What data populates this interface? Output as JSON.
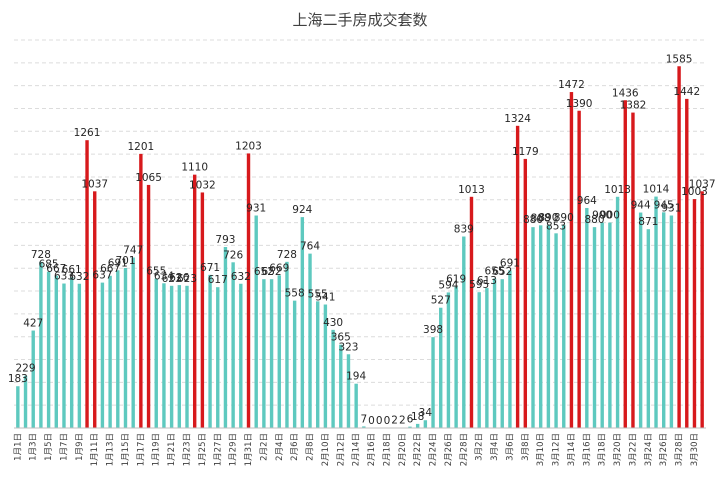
{
  "chart_data": {
    "type": "bar",
    "title": "上海二手房成交套数",
    "xlabel": "",
    "ylabel": "",
    "ylim": [
      0,
      1700
    ],
    "grid": true,
    "legend": "none",
    "colors": {
      "normal": "#5ec9bf",
      "highlight": "#d7191c"
    },
    "x_tick_labels": [
      "1月1日",
      "1月3日",
      "1月5日",
      "1月7日",
      "1月9日",
      "1月11日",
      "1月13日",
      "1月15日",
      "1月17日",
      "1月19日",
      "1月21日",
      "1月23日",
      "1月25日",
      "1月27日",
      "1月29日",
      "1月31日",
      "2月2日",
      "2月4日",
      "2月6日",
      "2月8日",
      "2月10日",
      "2月12日",
      "2月14日",
      "2月16日",
      "2月18日",
      "2月20日",
      "2月22日",
      "2月24日",
      "2月26日",
      "2月28日",
      "3月2日",
      "3月4日",
      "3月6日",
      "3月8日",
      "3月10日",
      "3月12日",
      "3月14日",
      "3月16日",
      "3月18日",
      "3月20日",
      "3月22日",
      "3月24日",
      "3月26日",
      "3月28日",
      "3月30日"
    ],
    "values": [
      183,
      229,
      427,
      728,
      685,
      667,
      633,
      661,
      632,
      1261,
      1037,
      637,
      667,
      691,
      701,
      747,
      1201,
      1065,
      655,
      634,
      623,
      626,
      623,
      1110,
      1032,
      671,
      617,
      793,
      726,
      632,
      1203,
      931,
      652,
      652,
      669,
      728,
      558,
      924,
      764,
      555,
      541,
      430,
      365,
      323,
      194,
      7,
      0,
      0,
      0,
      2,
      2,
      6,
      18,
      34,
      398,
      527,
      594,
      619,
      839,
      1013,
      595,
      613,
      655,
      652,
      691,
      1324,
      1179,
      880,
      888,
      890,
      853,
      890,
      1472,
      1390,
      964,
      880,
      900,
      900,
      1013,
      1436,
      1382,
      944,
      871,
      1014,
      945,
      931,
      1585,
      1442,
      1003,
      1037
    ],
    "highlight_indices": [
      9,
      10,
      16,
      17,
      23,
      24,
      30,
      59,
      65,
      66,
      72,
      73,
      79,
      80,
      86,
      87,
      88,
      89
    ],
    "data_labels": [
      {
        "i": 0,
        "text": "183"
      },
      {
        "i": 1,
        "text": "229"
      },
      {
        "i": 2,
        "text": "427"
      },
      {
        "i": 3,
        "text": "728"
      },
      {
        "i": 4,
        "text": "685"
      },
      {
        "i": 5,
        "text": "667"
      },
      {
        "i": 6,
        "text": "633"
      },
      {
        "i": 7,
        "text": "661"
      },
      {
        "i": 8,
        "text": "632"
      },
      {
        "i": 9,
        "text": "1261"
      },
      {
        "i": 10,
        "text": "1037"
      },
      {
        "i": 11,
        "text": "637"
      },
      {
        "i": 12,
        "text": "667"
      },
      {
        "i": 13,
        "text": "691"
      },
      {
        "i": 14,
        "text": "701"
      },
      {
        "i": 15,
        "text": "747"
      },
      {
        "i": 16,
        "text": "1201"
      },
      {
        "i": 17,
        "text": "1065"
      },
      {
        "i": 18,
        "text": "655"
      },
      {
        "i": 19,
        "text": "634"
      },
      {
        "i": 20,
        "text": "623"
      },
      {
        "i": 21,
        "text": "626"
      },
      {
        "i": 22,
        "text": "623"
      },
      {
        "i": 23,
        "text": "1110"
      },
      {
        "i": 24,
        "text": "1032"
      },
      {
        "i": 25,
        "text": "671"
      },
      {
        "i": 26,
        "text": "617"
      },
      {
        "i": 27,
        "text": "793"
      },
      {
        "i": 28,
        "text": "726"
      },
      {
        "i": 29,
        "text": "632"
      },
      {
        "i": 30,
        "text": "1203"
      },
      {
        "i": 31,
        "text": "931"
      },
      {
        "i": 32,
        "text": "652"
      },
      {
        "i": 33,
        "text": "652"
      },
      {
        "i": 34,
        "text": "669"
      },
      {
        "i": 35,
        "text": "728"
      },
      {
        "i": 36,
        "text": "558"
      },
      {
        "i": 37,
        "text": "924"
      },
      {
        "i": 38,
        "text": "764"
      },
      {
        "i": 39,
        "text": "555"
      },
      {
        "i": 40,
        "text": "541"
      },
      {
        "i": 41,
        "text": "430"
      },
      {
        "i": 42,
        "text": "365"
      },
      {
        "i": 43,
        "text": "323"
      },
      {
        "i": 44,
        "text": "194"
      },
      {
        "i": 45,
        "text": "7"
      },
      {
        "i": 46,
        "text": "0"
      },
      {
        "i": 47,
        "text": "0"
      },
      {
        "i": 48,
        "text": "0"
      },
      {
        "i": 49,
        "text": "2"
      },
      {
        "i": 50,
        "text": "2"
      },
      {
        "i": 51,
        "text": "6"
      },
      {
        "i": 52,
        "text": "18"
      },
      {
        "i": 53,
        "text": "34"
      },
      {
        "i": 54,
        "text": "398"
      },
      {
        "i": 55,
        "text": "527"
      },
      {
        "i": 56,
        "text": "594"
      },
      {
        "i": 57,
        "text": "619"
      },
      {
        "i": 58,
        "text": "839"
      },
      {
        "i": 59,
        "text": "1013"
      },
      {
        "i": 60,
        "text": "595"
      },
      {
        "i": 61,
        "text": "613"
      },
      {
        "i": 62,
        "text": "655"
      },
      {
        "i": 63,
        "text": "652"
      },
      {
        "i": 64,
        "text": "691"
      },
      {
        "i": 65,
        "text": "1324"
      },
      {
        "i": 66,
        "text": "1179"
      },
      {
        "i": 67,
        "text": "880"
      },
      {
        "i": 68,
        "text": "888"
      },
      {
        "i": 69,
        "text": "890"
      },
      {
        "i": 70,
        "text": "853"
      },
      {
        "i": 71,
        "text": "890"
      },
      {
        "i": 72,
        "text": "1472"
      },
      {
        "i": 73,
        "text": "1390"
      },
      {
        "i": 74,
        "text": "964"
      },
      {
        "i": 75,
        "text": "880"
      },
      {
        "i": 76,
        "text": "900"
      },
      {
        "i": 77,
        "text": "900"
      },
      {
        "i": 78,
        "text": "1013"
      },
      {
        "i": 79,
        "text": "1436"
      },
      {
        "i": 80,
        "text": "1382"
      },
      {
        "i": 81,
        "text": "944"
      },
      {
        "i": 82,
        "text": "871"
      },
      {
        "i": 83,
        "text": "1014"
      },
      {
        "i": 84,
        "text": "945"
      },
      {
        "i": 85,
        "text": "931"
      },
      {
        "i": 86,
        "text": "1585"
      },
      {
        "i": 87,
        "text": "1442"
      },
      {
        "i": 88,
        "text": "1003"
      },
      {
        "i": 89,
        "text": "1037"
      }
    ]
  }
}
